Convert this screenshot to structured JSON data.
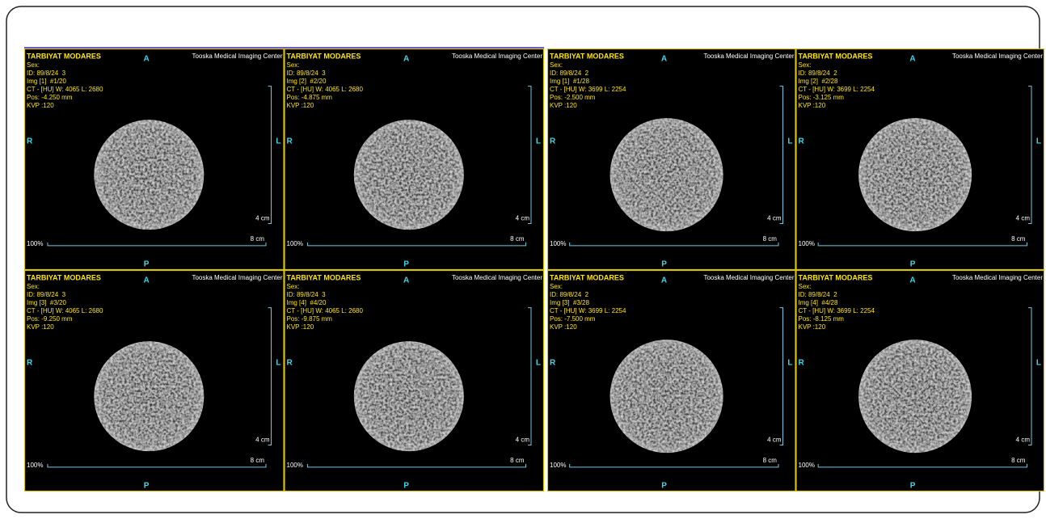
{
  "groups": [
    {
      "panels": [
        {
          "institution": "TARBIYAT MODARES",
          "top": "A",
          "center": "Tooska Medical Imaging Center",
          "sex": "Sex:",
          "id": "ID: 89/8/24  3",
          "img": "Img [1]  #1/20",
          "window": "CT - [HU] W: 4065 L: 2680",
          "pos": "Pos: -4.250 mm",
          "kvp": "KVP :120",
          "left": "R",
          "right": "L",
          "vscale": "4 cm",
          "zoom": "100%",
          "hscale": "8 cm",
          "bottom": "P"
        },
        {
          "institution": "TARBIYAT MODARES",
          "top": "A",
          "center": "Tooska Medical Imaging Center",
          "sex": "Sex:",
          "id": "ID: 89/8/24  3",
          "img": "Img [2]  #2/20",
          "window": "CT - [HU] W: 4065 L: 2680",
          "pos": "Pos: -4.875 mm",
          "kvp": "KVP :120",
          "left": "R",
          "right": "L",
          "vscale": "4 cm",
          "zoom": "100%",
          "hscale": "8 cm",
          "bottom": "P"
        },
        {
          "institution": "TARBIYAT MODARES",
          "top": "A",
          "center": "Tooska Medical Imaging Center",
          "sex": "Sex:",
          "id": "ID: 89/8/24  3",
          "img": "Img [3]  #3/20",
          "window": "CT - [HU] W: 4065 L: 2680",
          "pos": "Pos: -9.250 mm",
          "kvp": "KVP :120",
          "left": "R",
          "right": "L",
          "vscale": "4 cm",
          "zoom": "100%",
          "hscale": "8 cm",
          "bottom": "P"
        },
        {
          "institution": "TARBIYAT MODARES",
          "top": "A",
          "center": "Tooska Medical Imaging Center",
          "sex": "Sex:",
          "id": "ID: 89/8/24  3",
          "img": "Img [4]  #4/20",
          "window": "CT - [HU] W: 4065 L: 2680",
          "pos": "Pos: -9.875 mm",
          "kvp": "KVP :120",
          "left": "R",
          "right": "L",
          "vscale": "4 cm",
          "zoom": "100%",
          "hscale": "8 cm",
          "bottom": "P"
        }
      ]
    },
    {
      "panels": [
        {
          "institution": "TARBIYAT MODARES",
          "top": "A",
          "center": "Tooska Medical Imaging Center",
          "sex": "Sex:",
          "id": "ID: 89/8/24  2",
          "img": "Img [1]  #1/28",
          "window": "CT - [HU] W: 3699 L: 2254",
          "pos": "Pos: -2.500 mm",
          "kvp": "KVP :120",
          "left": "R",
          "right": "L",
          "vscale": "4 cm",
          "zoom": "100%",
          "hscale": "8 cm",
          "bottom": "P"
        },
        {
          "institution": "TARBIYAT MODARES",
          "top": "A",
          "center": "Tooska Medical Imaging Center",
          "sex": "Sex:",
          "id": "ID: 89/8/24  2",
          "img": "Img [2]  #2/28",
          "window": "CT - [HU] W: 3699 L: 2254",
          "pos": "Pos: -3.125 mm",
          "kvp": "KVP :120",
          "left": "R",
          "right": "L",
          "vscale": "4 cm",
          "zoom": "100%",
          "hscale": "8 cm",
          "bottom": "P"
        },
        {
          "institution": "TARBIYAT MODARES",
          "top": "A",
          "center": "Tooska Medical Imaging Center",
          "sex": "Sex:",
          "id": "ID: 89/8/24  2",
          "img": "Img [3]  #3/28",
          "window": "CT - [HU] W: 3699 L: 2254",
          "pos": "Pos: -7.500 mm",
          "kvp": "KVP :120",
          "left": "R",
          "right": "L",
          "vscale": "4 cm",
          "zoom": "100%",
          "hscale": "8 cm",
          "bottom": "P"
        },
        {
          "institution": "TARBIYAT MODARES",
          "top": "A",
          "center": "Tooska Medical Imaging Center",
          "sex": "Sex:",
          "id": "ID: 89/8/24  2",
          "img": "Img [4]  #4/28",
          "window": "CT - [HU] W: 3699 L: 2254",
          "pos": "Pos: -8.125 mm",
          "kvp": "KVP :120",
          "left": "R",
          "right": "L",
          "vscale": "4 cm",
          "zoom": "100%",
          "hscale": "8 cm",
          "bottom": "P"
        }
      ]
    }
  ]
}
